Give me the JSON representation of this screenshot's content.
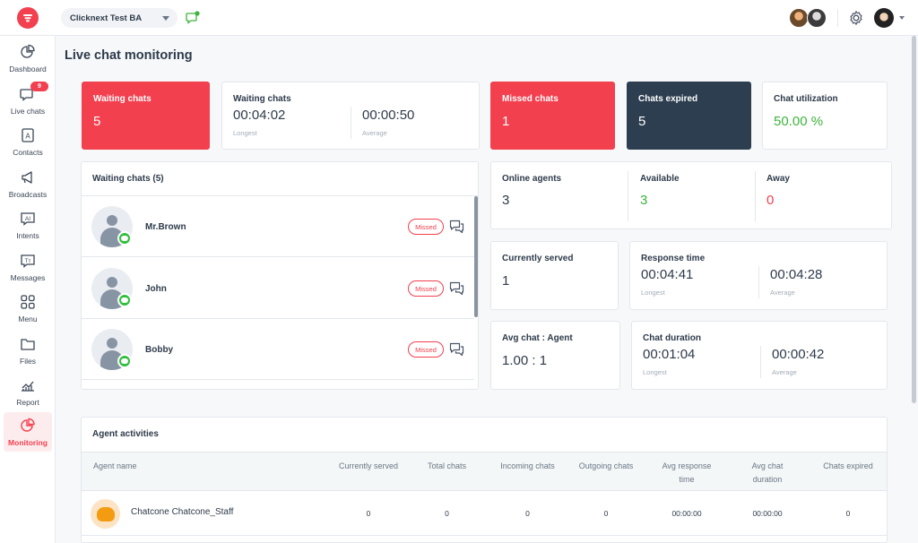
{
  "topbar": {
    "workspace": "Clicknext Test BA"
  },
  "sidebar": {
    "items": [
      {
        "label": "Dashboard",
        "icon": "pie-chart-icon"
      },
      {
        "label": "Live chats",
        "icon": "chat-bubble-icon",
        "badge": "9"
      },
      {
        "label": "Contacts",
        "icon": "contact-card-icon"
      },
      {
        "label": "Broadcasts",
        "icon": "megaphone-icon"
      },
      {
        "label": "Intents",
        "icon": "ai-icon"
      },
      {
        "label": "Messages",
        "icon": "text-message-icon"
      },
      {
        "label": "Menu",
        "icon": "grid-icon"
      },
      {
        "label": "Files",
        "icon": "folder-icon"
      },
      {
        "label": "Report",
        "icon": "line-chart-icon"
      },
      {
        "label": "Monitoring",
        "icon": "monitoring-icon",
        "active": true
      }
    ]
  },
  "page": {
    "title": "Live chat monitoring"
  },
  "stats": {
    "waiting_chats": {
      "title": "Waiting chats",
      "value": "5"
    },
    "waiting_time": {
      "title": "Waiting chats",
      "longest": "00:04:02",
      "longest_label": "Longest",
      "average": "00:00:50",
      "average_label": "Average"
    },
    "missed_chats": {
      "title": "Missed chats",
      "value": "1"
    },
    "chats_expired": {
      "title": "Chats expired",
      "value": "5"
    },
    "chat_utilization": {
      "title": "Chat utilization",
      "value": "50.00 %"
    },
    "online_agents": {
      "title": "Online agents",
      "value": "3"
    },
    "available": {
      "title": "Available",
      "value": "3"
    },
    "away": {
      "title": "Away",
      "value": "0"
    },
    "currently_served": {
      "title": "Currently served",
      "value": "1"
    },
    "response_time": {
      "title": "Response time",
      "longest": "00:04:41",
      "longest_label": "Longest",
      "average": "00:04:28",
      "average_label": "Average"
    },
    "avg_chat_agent": {
      "title": "Avg chat : Agent",
      "value": "1.00 : 1"
    },
    "chat_duration": {
      "title": "Chat duration",
      "longest": "00:01:04",
      "longest_label": "Longest",
      "average": "00:00:42",
      "average_label": "Average"
    }
  },
  "waiting_list": {
    "title": "Waiting chats (5)",
    "rows": [
      {
        "name": "Mr.Brown",
        "status": "Missed"
      },
      {
        "name": "John",
        "status": "Missed"
      },
      {
        "name": "Bobby",
        "status": "Missed"
      }
    ]
  },
  "agent_activities": {
    "title": "Agent activities",
    "columns": [
      "Agent name",
      "Currently served",
      "Total chats",
      "Incoming chats",
      "Outgoing chats",
      "Avg response time",
      "Avg chat duration",
      "Chats expired"
    ],
    "rows": [
      {
        "name": "Chatcone Chatcone_Staff",
        "currently_served": "0",
        "total_chats": "0",
        "incoming": "0",
        "outgoing": "0",
        "avg_response": "00:00:00",
        "avg_duration": "00:00:00",
        "expired": "0"
      }
    ]
  },
  "colors": {
    "brand": "#f2404f",
    "navy": "#2d3e50",
    "green": "#3cb43c"
  }
}
